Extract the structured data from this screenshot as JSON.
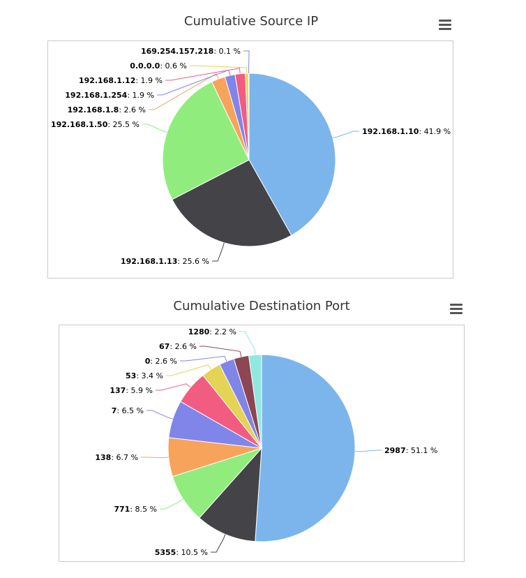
{
  "chart_data": [
    {
      "type": "pie",
      "title": "Cumulative Source IP",
      "categories": [
        "192.168.1.10",
        "192.168.1.13",
        "192.168.1.50",
        "192.168.1.8",
        "192.168.1.254",
        "192.168.1.12",
        "0.0.0.0",
        "169.254.157.218"
      ],
      "values": [
        41.9,
        25.6,
        25.5,
        2.6,
        1.9,
        1.9,
        0.6,
        0.1
      ],
      "value_suffix": " %",
      "colors": [
        "#7cb5ec",
        "#434348",
        "#90ed7d",
        "#f7a35c",
        "#8085e9",
        "#f15c80",
        "#e4d354",
        "#8085e8"
      ],
      "legend": "none"
    },
    {
      "type": "pie",
      "title": "Cumulative Destination Port",
      "categories": [
        "2987",
        "5355",
        "771",
        "138",
        "7",
        "137",
        "53",
        "0",
        "67",
        "1280"
      ],
      "values": [
        51.1,
        10.5,
        8.5,
        6.7,
        6.5,
        5.9,
        3.4,
        2.6,
        2.6,
        2.2
      ],
      "value_suffix": " %",
      "colors": [
        "#7cb5ec",
        "#434348",
        "#90ed7d",
        "#f7a35c",
        "#8085e9",
        "#f15c80",
        "#e4d354",
        "#8085e8",
        "#8d4653",
        "#91e8e1"
      ],
      "legend": "none"
    }
  ],
  "menu_icon": "hamburger-menu-icon"
}
